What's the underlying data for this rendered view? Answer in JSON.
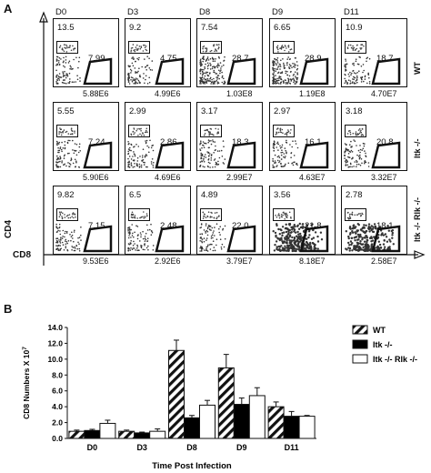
{
  "panel_a": {
    "label": "A",
    "x_axis": "CD8",
    "y_axis": "CD4",
    "days": [
      "D0",
      "D3",
      "D8",
      "D9",
      "D11"
    ],
    "rows": [
      {
        "name": "WT",
        "cd4": [
          "13.5",
          "9.2",
          "7.54",
          "6.65",
          "10.9"
        ],
        "cd8": [
          "7.99",
          "4.75",
          "28.7",
          "28.9",
          "18.7"
        ],
        "total": [
          "5.88E6",
          "4.99E6",
          "1.03E8",
          "1.19E8",
          "4.70E7"
        ],
        "density": [
          1,
          1,
          2,
          2,
          1
        ]
      },
      {
        "name": "Itk -/-",
        "cd4": [
          "5.55",
          "2.99",
          "3.17",
          "2.97",
          "3.18"
        ],
        "cd8": [
          "7.24",
          "2.86",
          "18.3",
          "16.1",
          "20.8"
        ],
        "total": [
          "5.90E6",
          "4.69E6",
          "2.99E7",
          "4.63E7",
          "3.32E7"
        ],
        "density": [
          1,
          1,
          1,
          1,
          1
        ]
      },
      {
        "name": "Itk -/- Rlk -/-",
        "cd4": [
          "9.82",
          "6.5",
          "4.89",
          "3.56",
          "2.78"
        ],
        "cd8": [
          "7.15",
          "2.48",
          "22.0",
          "21.8",
          "18.1"
        ],
        "total": [
          "9.53E6",
          "2.92E6",
          "3.79E7",
          "8.18E7",
          "2.58E7"
        ],
        "density": [
          1,
          1,
          1,
          3,
          3
        ]
      }
    ]
  },
  "panel_b_label": "B",
  "chart_data": {
    "type": "bar",
    "categories": [
      "D0",
      "D3",
      "D8",
      "D9",
      "D11"
    ],
    "xlabel": "Time Post Infection",
    "ylabel": "CD8 Numbers X 10",
    "ylabel_exp": "7",
    "ylim": [
      0,
      14
    ],
    "yticks": [
      "0.0",
      "2.0",
      "4.0",
      "6.0",
      "8.0",
      "10.0",
      "12.0",
      "14.0"
    ],
    "legend_position": "top-right",
    "series": [
      {
        "name": "WT",
        "values": [
          0.9,
          0.9,
          11.1,
          8.9,
          4.0
        ],
        "errors": [
          0.15,
          0.15,
          1.3,
          1.7,
          0.6
        ],
        "fill": "hatch"
      },
      {
        "name": "Itk -/-",
        "values": [
          1.0,
          0.7,
          2.6,
          4.3,
          2.8
        ],
        "errors": [
          0.15,
          0.1,
          0.3,
          0.8,
          0.6
        ],
        "fill": "#000000"
      },
      {
        "name": "Itk -/- Rlk -/-",
        "values": [
          1.9,
          0.9,
          4.2,
          5.4,
          2.8
        ],
        "errors": [
          0.4,
          0.3,
          0.6,
          1.0,
          0.1
        ],
        "fill": "#ffffff"
      }
    ]
  }
}
